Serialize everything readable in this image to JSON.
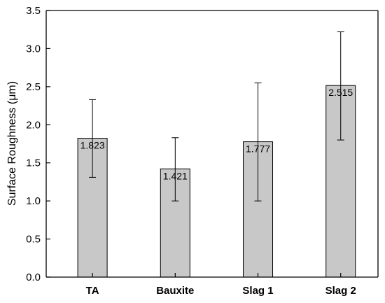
{
  "chart_data": {
    "type": "bar",
    "title": "",
    "xlabel": "",
    "ylabel": "Surface Roughness (μm)",
    "ylim": [
      0,
      3.5
    ],
    "yticks": [
      "0.0",
      "0.5",
      "1.0",
      "1.5",
      "2.0",
      "2.5",
      "3.0",
      "3.5"
    ],
    "categories": [
      "TA",
      "Bauxite",
      "Slag 1",
      "Slag 2"
    ],
    "values": [
      1.823,
      1.421,
      1.777,
      2.515
    ],
    "value_labels": [
      "1.823",
      "1.421",
      "1.777",
      "2.515"
    ],
    "error_low": [
      1.31,
      1.0,
      1.0,
      1.8
    ],
    "error_high": [
      2.33,
      1.83,
      2.55,
      3.22
    ],
    "bar_color": "#c8c8c8",
    "grid": false,
    "legend": "none"
  }
}
